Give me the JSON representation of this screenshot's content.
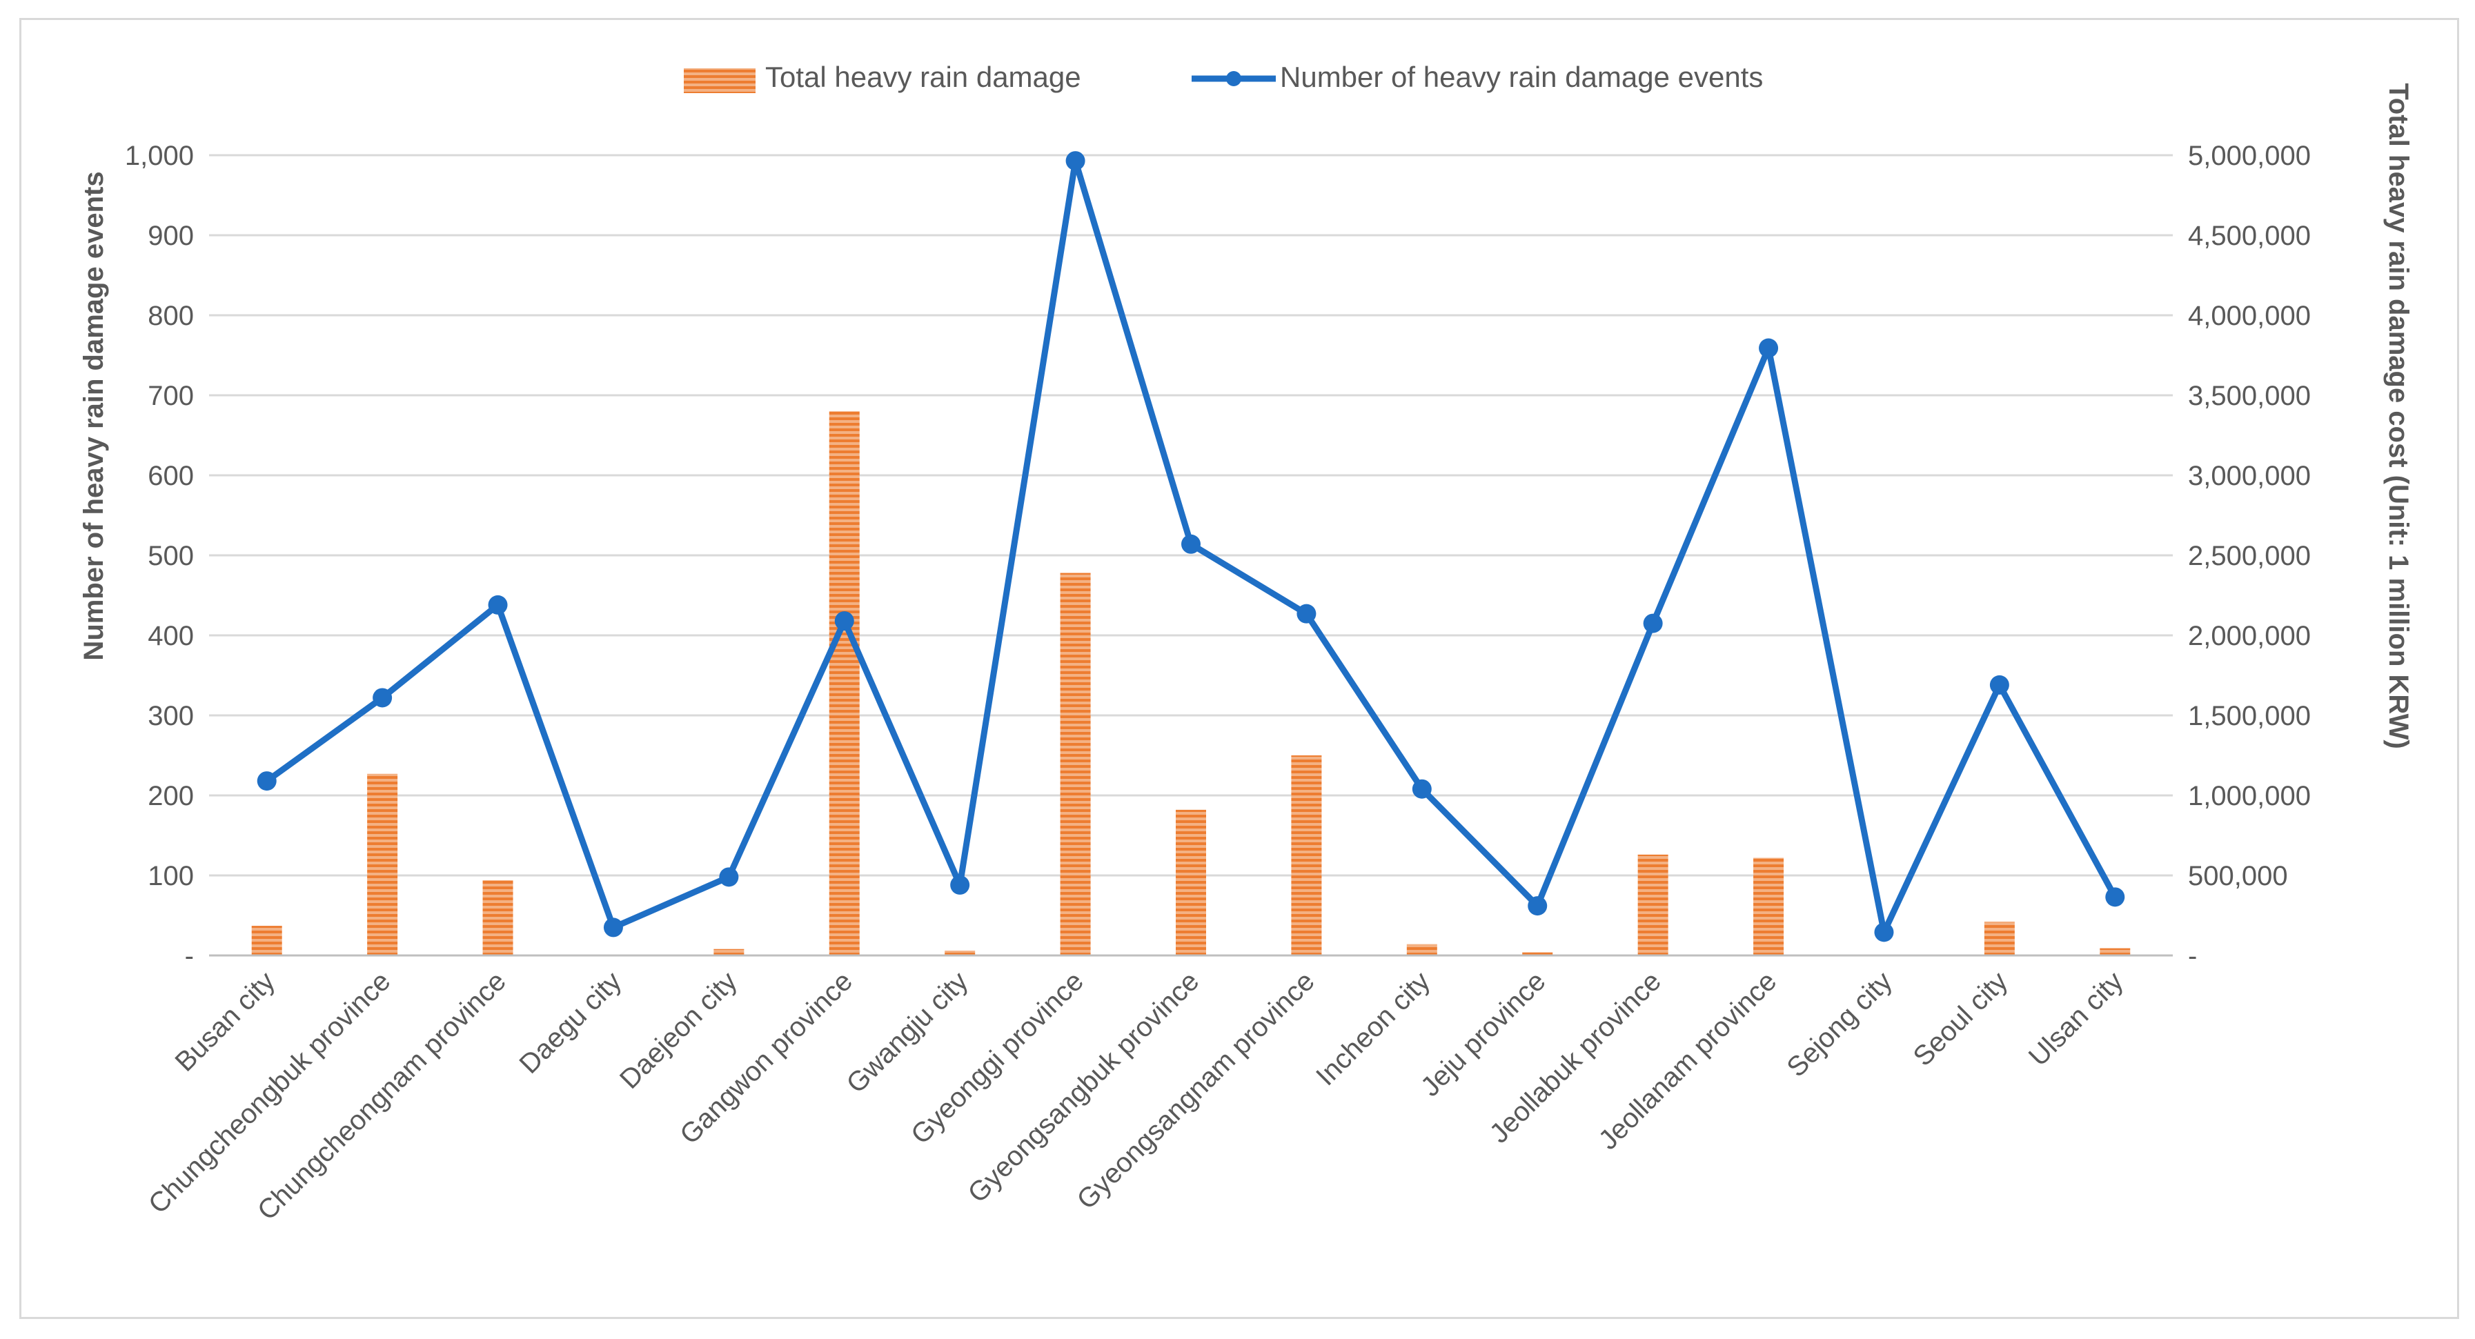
{
  "chart_data": {
    "type": "bar+line",
    "categories": [
      "Busan city",
      "Chungcheongbuk province",
      "Chungcheongnam province",
      "Daegu city",
      "Daejeon city",
      "Gangwon province",
      "Gwangju city",
      "Gyeonggi province",
      "Gyeongsangbuk province",
      "Gyeongsangnam province",
      "Incheon city",
      "Jeju province",
      "Jeollabuk province",
      "Jeollanam province",
      "Sejong city",
      "Seoul city",
      "Ulsan city"
    ],
    "series": [
      {
        "name": "Total heavy rain damage",
        "kind": "bar",
        "axis": "right",
        "color": "#ED7D31",
        "values": [
          185000,
          1135000,
          470000,
          0,
          40000,
          3400000,
          30000,
          2390000,
          910000,
          1250000,
          70000,
          20000,
          630000,
          610000,
          0,
          210000,
          45000
        ]
      },
      {
        "name": "Number of heavy rain damage events",
        "kind": "line",
        "axis": "left",
        "color": "#1F6FC5",
        "values": [
          218,
          322,
          438,
          35,
          98,
          418,
          88,
          993,
          514,
          427,
          208,
          62,
          415,
          759,
          29,
          338,
          73
        ]
      }
    ],
    "ylabel": "Number of heavy rain damage events",
    "y2label": "Total heavy rain damage cost (Unit: 1 million KRW)",
    "ylim": [
      0,
      1000
    ],
    "y2lim": [
      0,
      5000000
    ],
    "yticks": [
      "-",
      "100",
      "200",
      "300",
      "400",
      "500",
      "600",
      "700",
      "800",
      "900",
      "1,000"
    ],
    "y2ticks": [
      "-",
      "500,000",
      "1,000,000",
      "1,500,000",
      "2,000,000",
      "2,500,000",
      "3,000,000",
      "3,500,000",
      "4,000,000",
      "4,500,000",
      "5,000,000"
    ],
    "legend": "top-center",
    "grid": true
  }
}
